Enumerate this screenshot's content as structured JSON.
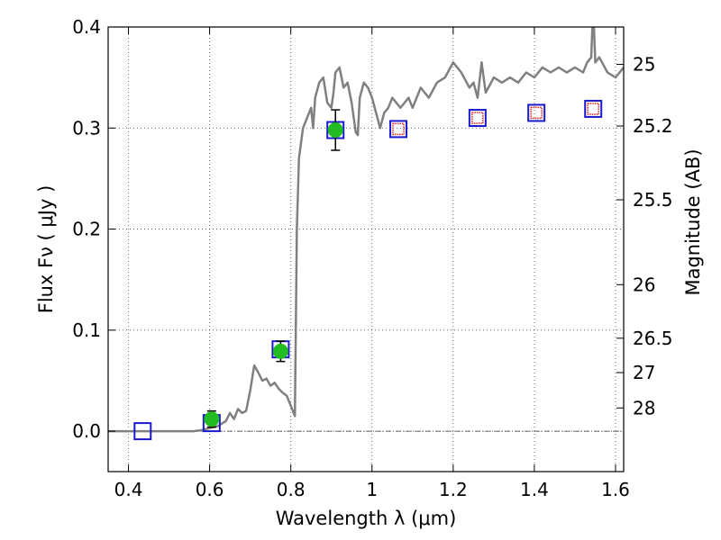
{
  "chart_data": {
    "type": "scatter",
    "xlabel": "Wavelength  λ (μm)",
    "ylabel": "Flux  Fν  ( μJy )",
    "y2label": "Magnitude (AB)",
    "xlim": [
      0.35,
      1.62
    ],
    "ylim": [
      -0.04,
      0.4
    ],
    "x_ticks": [
      0.4,
      0.6,
      0.8,
      1.0,
      1.2,
      1.4,
      1.6
    ],
    "x_tick_labels": [
      "0.4",
      "0.6",
      "0.8",
      "1",
      "1.2",
      "1.4",
      "1.6"
    ],
    "y_ticks": [
      0.0,
      0.1,
      0.2,
      0.3,
      0.4
    ],
    "y_tick_labels": [
      "0.0",
      "0.1",
      "0.2",
      "0.3",
      "0.4"
    ],
    "mag_ticks": [
      {
        "label": "25",
        "flux": 0.363
      },
      {
        "label": "25.2",
        "flux": 0.302
      },
      {
        "label": "25.5",
        "flux": 0.229
      },
      {
        "label": "26",
        "flux": 0.145
      },
      {
        "label": "26.5",
        "flux": 0.092
      },
      {
        "label": "27",
        "flux": 0.058
      },
      {
        "label": "28",
        "flux": 0.023
      }
    ],
    "grid": true,
    "zero_line": true,
    "colors": {
      "model": "#808080",
      "observed": "#22bb22",
      "model_box": "#1a1acc",
      "outline_box": "#dd2222"
    },
    "series": [
      {
        "type": "line",
        "points": [
          [
            0.35,
            0.0
          ],
          [
            0.56,
            0.0
          ],
          [
            0.58,
            0.001
          ],
          [
            0.6,
            0.003
          ],
          [
            0.62,
            0.005
          ],
          [
            0.64,
            0.01
          ],
          [
            0.65,
            0.018
          ],
          [
            0.66,
            0.012
          ],
          [
            0.67,
            0.022
          ],
          [
            0.68,
            0.018
          ],
          [
            0.69,
            0.02
          ],
          [
            0.7,
            0.04
          ],
          [
            0.71,
            0.065
          ],
          [
            0.72,
            0.058
          ],
          [
            0.73,
            0.05
          ],
          [
            0.74,
            0.052
          ],
          [
            0.75,
            0.045
          ],
          [
            0.76,
            0.048
          ],
          [
            0.77,
            0.042
          ],
          [
            0.78,
            0.038
          ],
          [
            0.79,
            0.035
          ],
          [
            0.8,
            0.025
          ],
          [
            0.81,
            0.015
          ],
          [
            0.815,
            0.2
          ],
          [
            0.82,
            0.27
          ],
          [
            0.83,
            0.3
          ],
          [
            0.84,
            0.31
          ],
          [
            0.85,
            0.32
          ],
          [
            0.855,
            0.3
          ],
          [
            0.86,
            0.33
          ],
          [
            0.87,
            0.345
          ],
          [
            0.88,
            0.35
          ],
          [
            0.89,
            0.325
          ],
          [
            0.9,
            0.32
          ],
          [
            0.905,
            0.335
          ],
          [
            0.91,
            0.355
          ],
          [
            0.92,
            0.36
          ],
          [
            0.93,
            0.34
          ],
          [
            0.94,
            0.345
          ],
          [
            0.95,
            0.325
          ],
          [
            0.96,
            0.296
          ],
          [
            0.965,
            0.293
          ],
          [
            0.97,
            0.33
          ],
          [
            0.98,
            0.345
          ],
          [
            0.99,
            0.34
          ],
          [
            1.0,
            0.33
          ],
          [
            1.02,
            0.3
          ],
          [
            1.03,
            0.315
          ],
          [
            1.04,
            0.32
          ],
          [
            1.05,
            0.33
          ],
          [
            1.07,
            0.32
          ],
          [
            1.09,
            0.33
          ],
          [
            1.1,
            0.32
          ],
          [
            1.12,
            0.34
          ],
          [
            1.14,
            0.33
          ],
          [
            1.16,
            0.345
          ],
          [
            1.18,
            0.35
          ],
          [
            1.2,
            0.365
          ],
          [
            1.22,
            0.355
          ],
          [
            1.24,
            0.34
          ],
          [
            1.25,
            0.345
          ],
          [
            1.26,
            0.33
          ],
          [
            1.27,
            0.365
          ],
          [
            1.28,
            0.335
          ],
          [
            1.3,
            0.35
          ],
          [
            1.32,
            0.345
          ],
          [
            1.34,
            0.35
          ],
          [
            1.36,
            0.345
          ],
          [
            1.38,
            0.355
          ],
          [
            1.4,
            0.35
          ],
          [
            1.42,
            0.36
          ],
          [
            1.44,
            0.355
          ],
          [
            1.46,
            0.36
          ],
          [
            1.48,
            0.355
          ],
          [
            1.5,
            0.36
          ],
          [
            1.52,
            0.355
          ],
          [
            1.53,
            0.365
          ],
          [
            1.54,
            0.37
          ],
          [
            1.545,
            0.42
          ],
          [
            1.55,
            0.365
          ],
          [
            1.56,
            0.37
          ],
          [
            1.58,
            0.355
          ],
          [
            1.6,
            0.35
          ],
          [
            1.62,
            0.36
          ]
        ]
      },
      {
        "type": "scatter-box",
        "points": [
          {
            "x": 0.435,
            "y": 0.0
          },
          {
            "x": 0.605,
            "y": 0.008
          },
          {
            "x": 0.775,
            "y": 0.081
          },
          {
            "x": 0.91,
            "y": 0.298
          },
          {
            "x": 1.065,
            "y": 0.299
          },
          {
            "x": 1.26,
            "y": 0.31
          },
          {
            "x": 1.405,
            "y": 0.315
          },
          {
            "x": 1.545,
            "y": 0.319
          }
        ]
      },
      {
        "type": "scatter-outline",
        "points": [
          {
            "x": 1.065,
            "y": 0.299
          },
          {
            "x": 1.26,
            "y": 0.31
          },
          {
            "x": 1.405,
            "y": 0.315
          },
          {
            "x": 1.545,
            "y": 0.319
          }
        ]
      },
      {
        "type": "scatter-errorbar",
        "points": [
          {
            "x": 0.605,
            "y": 0.012,
            "err": 0.008
          },
          {
            "x": 0.775,
            "y": 0.079,
            "err": 0.01
          },
          {
            "x": 0.91,
            "y": 0.298,
            "err": 0.02
          }
        ]
      }
    ]
  }
}
